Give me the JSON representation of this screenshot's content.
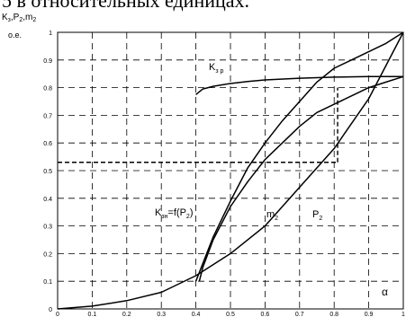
{
  "caption": "5 в относительных единицах.",
  "chart_data": {
    "type": "line",
    "ylabel_main": "K",
    "ylabel_main_sub": "з",
    "ylabel_rest": ",P",
    "ylabel_rest_sub": "2",
    "ylabel_tail": ",m",
    "ylabel_tail_sub": "2",
    "yunit": "о.е.",
    "xlabel": "α",
    "xlim": [
      0,
      1
    ],
    "ylim": [
      0,
      1
    ],
    "xticks": [
      "0",
      "0.1",
      "0.2",
      "0.3",
      "0.4",
      "0.5",
      "0.6",
      "0.7",
      "0.8",
      "0.9",
      "1"
    ],
    "yticks": [
      "0",
      "0.1",
      "0.2",
      "0.3",
      "0.4",
      "0.5",
      "0.6",
      "0.7",
      "0.8",
      "0.9",
      "1"
    ],
    "grid": true,
    "series": [
      {
        "name": "K",
        "name_sub": "з р",
        "x": [
          0.4,
          0.42,
          0.45,
          0.5,
          0.55,
          0.6,
          0.7,
          0.8,
          0.9,
          1.0
        ],
        "y": [
          0.775,
          0.795,
          0.805,
          0.815,
          0.822,
          0.828,
          0.834,
          0.838,
          0.84,
          0.84
        ]
      },
      {
        "name": "m",
        "name_sub": "2",
        "x": [
          0.41,
          0.42,
          0.45,
          0.5,
          0.55,
          0.6,
          0.65,
          0.7,
          0.75,
          0.8,
          0.85,
          0.9,
          0.95,
          1.0
        ],
        "y": [
          0.1,
          0.15,
          0.25,
          0.37,
          0.46,
          0.54,
          0.6,
          0.66,
          0.71,
          0.74,
          0.77,
          0.8,
          0.82,
          0.84
        ]
      },
      {
        "name": "P",
        "name_sub": "2",
        "x": [
          0.0,
          0.1,
          0.2,
          0.3,
          0.4,
          0.5,
          0.6,
          0.7,
          0.8,
          0.9,
          1.0
        ],
        "y": [
          0.0,
          0.01,
          0.03,
          0.06,
          0.12,
          0.2,
          0.3,
          0.44,
          0.58,
          0.76,
          1.0
        ]
      },
      {
        "name": "K",
        "name_sub": "зн",
        "name_tail": "=f(P",
        "name_tail_sub": "2",
        "name_end": ")",
        "x": [
          0.4,
          0.45,
          0.5,
          0.55,
          0.6,
          0.65,
          0.7,
          0.75,
          0.8,
          0.85,
          0.9,
          0.95,
          1.0
        ],
        "y": [
          0.1,
          0.26,
          0.39,
          0.51,
          0.6,
          0.68,
          0.75,
          0.82,
          0.87,
          0.9,
          0.93,
          0.96,
          1.0
        ]
      }
    ],
    "reference_lines": {
      "horizontal_y": 0.53,
      "vertical_x": 0.81
    }
  }
}
